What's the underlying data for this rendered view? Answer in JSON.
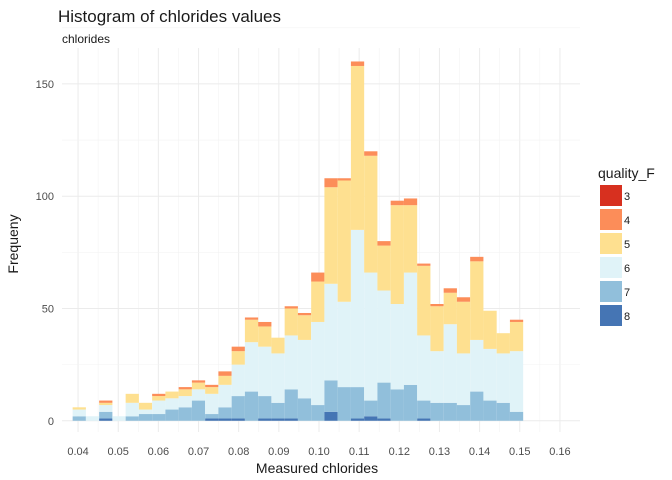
{
  "chart_data": {
    "type": "bar",
    "title": "Histogram of chlorides values",
    "subtitle": "chlorides",
    "xlabel": "Measured chlorides",
    "ylabel": "Frequeny",
    "xlim": [
      0.036,
      0.165
    ],
    "ylim": [
      -5,
      166
    ],
    "bin_width": 0.0033,
    "grid": true,
    "legend_position": "right",
    "x_ticks": [
      0.04,
      0.05,
      0.06,
      0.07,
      0.08,
      0.09,
      0.1,
      0.11,
      0.12,
      0.13,
      0.14,
      0.15,
      0.16
    ],
    "x_tick_labels": [
      "0.04",
      "0.05",
      "0.06",
      "0.07",
      "0.08",
      "0.09",
      "0.10",
      "0.11",
      "0.12",
      "0.13",
      "0.14",
      "0.15",
      "0.16"
    ],
    "y_ticks": [
      0,
      50,
      100,
      150
    ],
    "y_tick_labels": [
      "0",
      "50",
      "100",
      "150"
    ],
    "legend_title": "quality_F",
    "series": [
      {
        "name": "3",
        "color": "#D7301F"
      },
      {
        "name": "4",
        "color": "#FC8D59"
      },
      {
        "name": "5",
        "color": "#FEE090"
      },
      {
        "name": "6",
        "color": "#E0F3F8"
      },
      {
        "name": "7",
        "color": "#91BFDB"
      },
      {
        "name": "8",
        "color": "#4575B4"
      }
    ],
    "bins": [
      {
        "x": 0.0403,
        "counts": [
          0,
          0,
          1,
          3,
          2,
          0
        ]
      },
      {
        "x": 0.0436,
        "counts": [
          0,
          0,
          0,
          2,
          0,
          0
        ]
      },
      {
        "x": 0.0469,
        "counts": [
          0,
          1,
          1,
          3,
          3,
          1
        ]
      },
      {
        "x": 0.0502,
        "counts": [
          0,
          0,
          0,
          2,
          0,
          0
        ]
      },
      {
        "x": 0.0535,
        "counts": [
          0,
          0,
          4,
          6,
          2,
          0
        ]
      },
      {
        "x": 0.0568,
        "counts": [
          0,
          0,
          3,
          2,
          3,
          0
        ]
      },
      {
        "x": 0.0601,
        "counts": [
          0,
          1,
          2,
          6,
          3,
          0
        ]
      },
      {
        "x": 0.0634,
        "counts": [
          0,
          0,
          3,
          5,
          5,
          0
        ]
      },
      {
        "x": 0.0667,
        "counts": [
          0,
          1,
          3,
          5,
          6,
          0
        ]
      },
      {
        "x": 0.07,
        "counts": [
          0,
          1,
          3,
          5,
          9,
          0
        ]
      },
      {
        "x": 0.0733,
        "counts": [
          0,
          1,
          3,
          9,
          2,
          1
        ]
      },
      {
        "x": 0.0766,
        "counts": [
          0,
          2,
          4,
          10,
          5,
          1
        ]
      },
      {
        "x": 0.0799,
        "counts": [
          0,
          2,
          6,
          14,
          10,
          1
        ]
      },
      {
        "x": 0.0832,
        "counts": [
          0,
          1,
          10,
          22,
          13,
          0
        ]
      },
      {
        "x": 0.0865,
        "counts": [
          0,
          2,
          9,
          22,
          10,
          1
        ]
      },
      {
        "x": 0.0898,
        "counts": [
          0,
          0,
          7,
          22,
          7,
          1
        ]
      },
      {
        "x": 0.0931,
        "counts": [
          0,
          1,
          12,
          24,
          13,
          1
        ]
      },
      {
        "x": 0.0964,
        "counts": [
          0,
          1,
          11,
          26,
          10,
          0
        ]
      },
      {
        "x": 0.0997,
        "counts": [
          0,
          4,
          18,
          37,
          7,
          0
        ]
      },
      {
        "x": 0.103,
        "counts": [
          0,
          4,
          43,
          43,
          14,
          4
        ]
      },
      {
        "x": 0.1063,
        "counts": [
          0,
          1,
          54,
          38,
          15,
          0
        ]
      },
      {
        "x": 0.1096,
        "counts": [
          0,
          2,
          73,
          70,
          14,
          1
        ]
      },
      {
        "x": 0.1129,
        "counts": [
          0,
          2,
          52,
          57,
          7,
          2
        ]
      },
      {
        "x": 0.1162,
        "counts": [
          0,
          2,
          20,
          41,
          16,
          1
        ]
      },
      {
        "x": 0.1195,
        "counts": [
          0,
          2,
          44,
          38,
          14,
          0
        ]
      },
      {
        "x": 0.1228,
        "counts": [
          0,
          3,
          30,
          50,
          16,
          0
        ]
      },
      {
        "x": 0.1261,
        "counts": [
          0,
          1,
          31,
          29,
          8,
          1
        ]
      },
      {
        "x": 0.1294,
        "counts": [
          0,
          1,
          20,
          23,
          8,
          0
        ]
      },
      {
        "x": 0.1327,
        "counts": [
          0,
          2,
          14,
          35,
          8,
          0
        ]
      },
      {
        "x": 0.136,
        "counts": [
          0,
          2,
          23,
          23,
          7,
          0
        ]
      },
      {
        "x": 0.1393,
        "counts": [
          0,
          2,
          35,
          23,
          13,
          0
        ]
      },
      {
        "x": 0.1426,
        "counts": [
          0,
          0,
          17,
          23,
          9,
          0
        ]
      },
      {
        "x": 0.1459,
        "counts": [
          0,
          0,
          9,
          22,
          8,
          0
        ]
      },
      {
        "x": 0.1492,
        "counts": [
          0,
          1,
          13,
          27,
          4,
          0
        ]
      }
    ]
  }
}
